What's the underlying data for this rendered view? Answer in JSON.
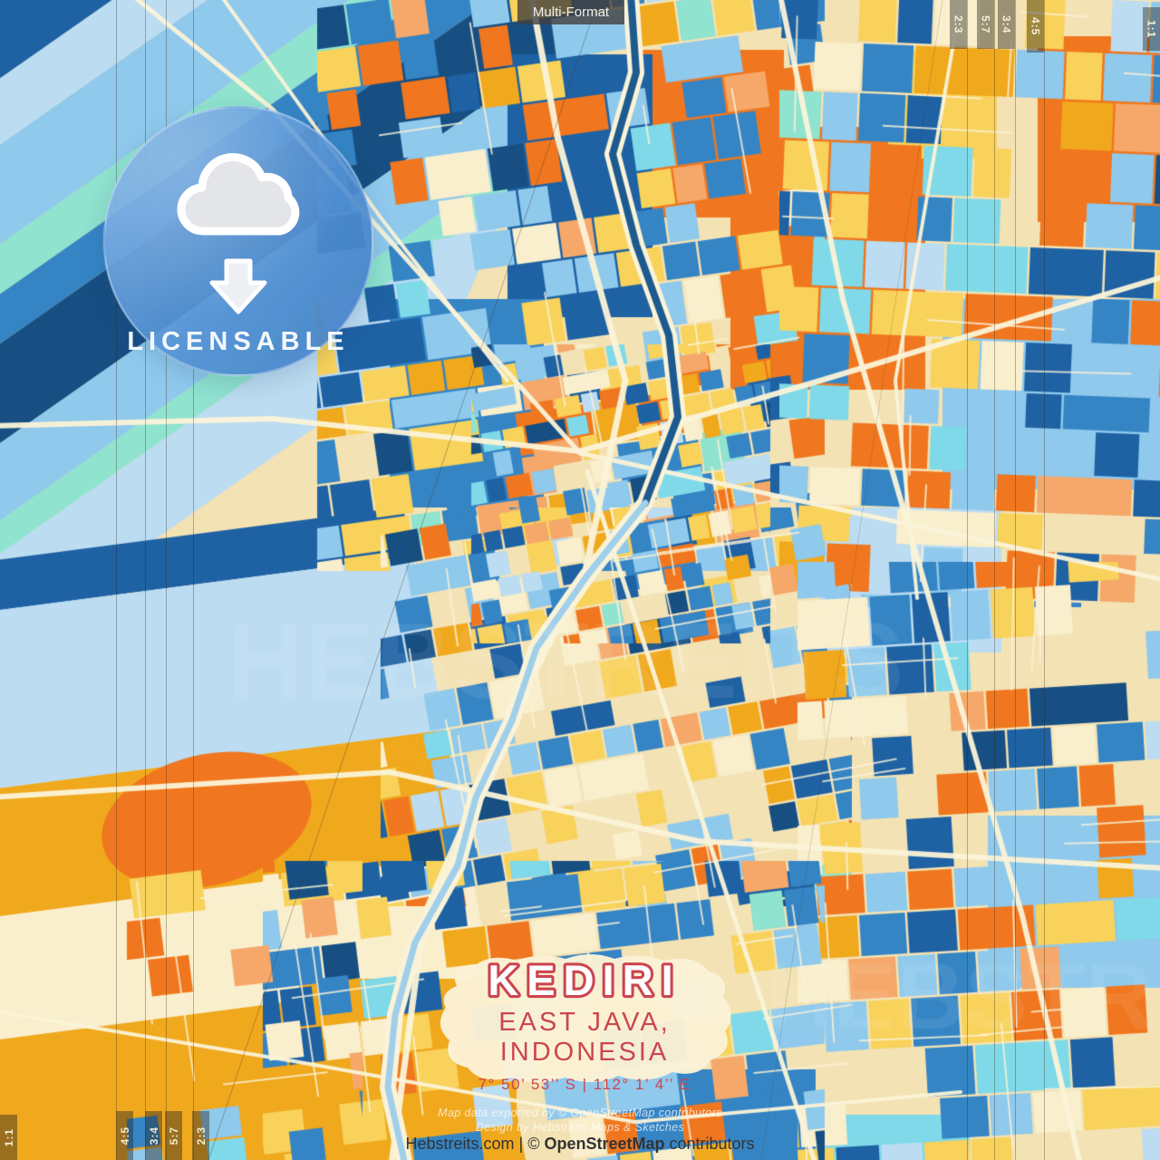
{
  "top_label": "Multi-Format",
  "badge": {
    "label": "LICENSABLE",
    "icon": "cloud-download-icon"
  },
  "format_markers": {
    "top_right": [
      "2:3",
      "5:7",
      "3:4",
      "4:5",
      "1:1"
    ],
    "bottom_left": [
      "1:1",
      "4:5",
      "3:4",
      "5:7",
      "2:3"
    ]
  },
  "title_block": {
    "city": "KEDIRI",
    "region": "EAST JAVA, INDONESIA",
    "coordinates": "7°  50’  53’’ S  |  112°  1’  4’’ E"
  },
  "attribution": {
    "line1": "Map data exported by © OpenStreetMap contributors",
    "line2": "Design by Hebstreits Maps & Sketches"
  },
  "footer": {
    "site": "Hebstreits.com",
    "divider": " | ",
    "copyright": "© ",
    "osm": "OpenStreetMap",
    "suffix": " contributors"
  },
  "watermark": "HEBSTREITS",
  "palette": {
    "base": "#f3e2b4",
    "road": "#fbf3d8",
    "creamLight": "#f9efcd",
    "yellow": "#f8d25a",
    "amber": "#f0a81d",
    "orange": "#f0771f",
    "salmon": "#f5a869",
    "blue": "#3585c5",
    "darkBlue": "#1e62a4",
    "navy": "#174f83",
    "lightBlue": "#8fc9ec",
    "paleBlue": "#bcdcf2",
    "cyan": "#7fd9e8",
    "mint": "#8fe3cf",
    "titleRed": "#cc4550",
    "badgeBlue": "#5895d6",
    "riverTop": "#1c5a8f",
    "riverLow": "#9fcfeb"
  }
}
